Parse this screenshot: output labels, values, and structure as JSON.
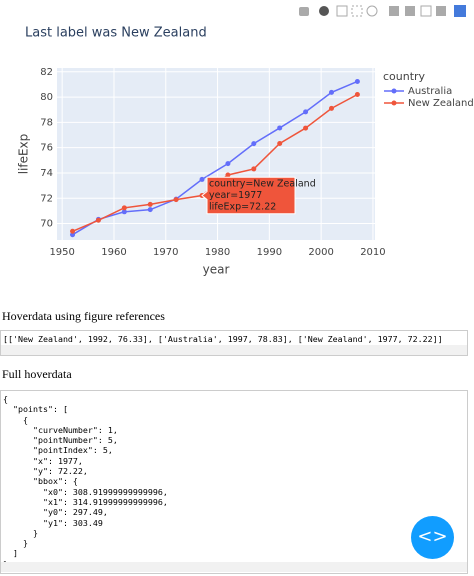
{
  "header": {
    "title": "Last label was New Zealand"
  },
  "chart_data": {
    "type": "line",
    "x": [
      1952,
      1957,
      1962,
      1967,
      1972,
      1977,
      1982,
      1987,
      1992,
      1997,
      2002,
      2007
    ],
    "series": [
      {
        "name": "Australia",
        "color": "#636efa",
        "values": [
          69.12,
          70.33,
          70.93,
          71.1,
          71.93,
          73.49,
          74.74,
          76.32,
          77.56,
          78.83,
          80.37,
          81.235
        ]
      },
      {
        "name": "New Zealand",
        "color": "#ef553b",
        "values": [
          69.39,
          70.26,
          71.24,
          71.52,
          71.89,
          72.22,
          73.84,
          74.32,
          76.33,
          77.55,
          79.11,
          80.204
        ]
      }
    ],
    "x_label": "year",
    "y_label": "lifeExp",
    "legend_title": "country",
    "legend": "right",
    "xlim": [
      1949,
      2010.4
    ],
    "xticks": [
      1950,
      1960,
      1970,
      1980,
      1990,
      2000,
      2010
    ],
    "ylim": [
      68.7,
      82.3
    ],
    "yticks": [
      70,
      72,
      74,
      76,
      78,
      80,
      82
    ],
    "grid": true,
    "hover": {
      "series": 1,
      "index": 5,
      "lines": [
        "country=New Zealand",
        "year=1977",
        "lifeExp=72.22"
      ]
    }
  },
  "refs_section": {
    "heading": "Hoverdata using figure references",
    "text": "[['New Zealand', 1992, 76.33], ['Australia', 1997, 78.83], ['New Zealand', 1977, 72.22]]"
  },
  "full_section": {
    "heading": "Full hoverdata",
    "lines": [
      "{",
      "  \"points\": [",
      "    {",
      "      \"curveNumber\": 1,",
      "      \"pointNumber\": 5,",
      "      \"pointIndex\": 5,",
      "      \"x\": 1977,",
      "      \"y\": 72.22,",
      "      \"bbox\": {",
      "        \"x0\": 308.91999999999996,",
      "        \"x1\": 314.91999999999996,",
      "        \"y0\": 297.49,",
      "        \"y1\": 303.49",
      "      }",
      "    }",
      "  ]",
      "}"
    ]
  }
}
